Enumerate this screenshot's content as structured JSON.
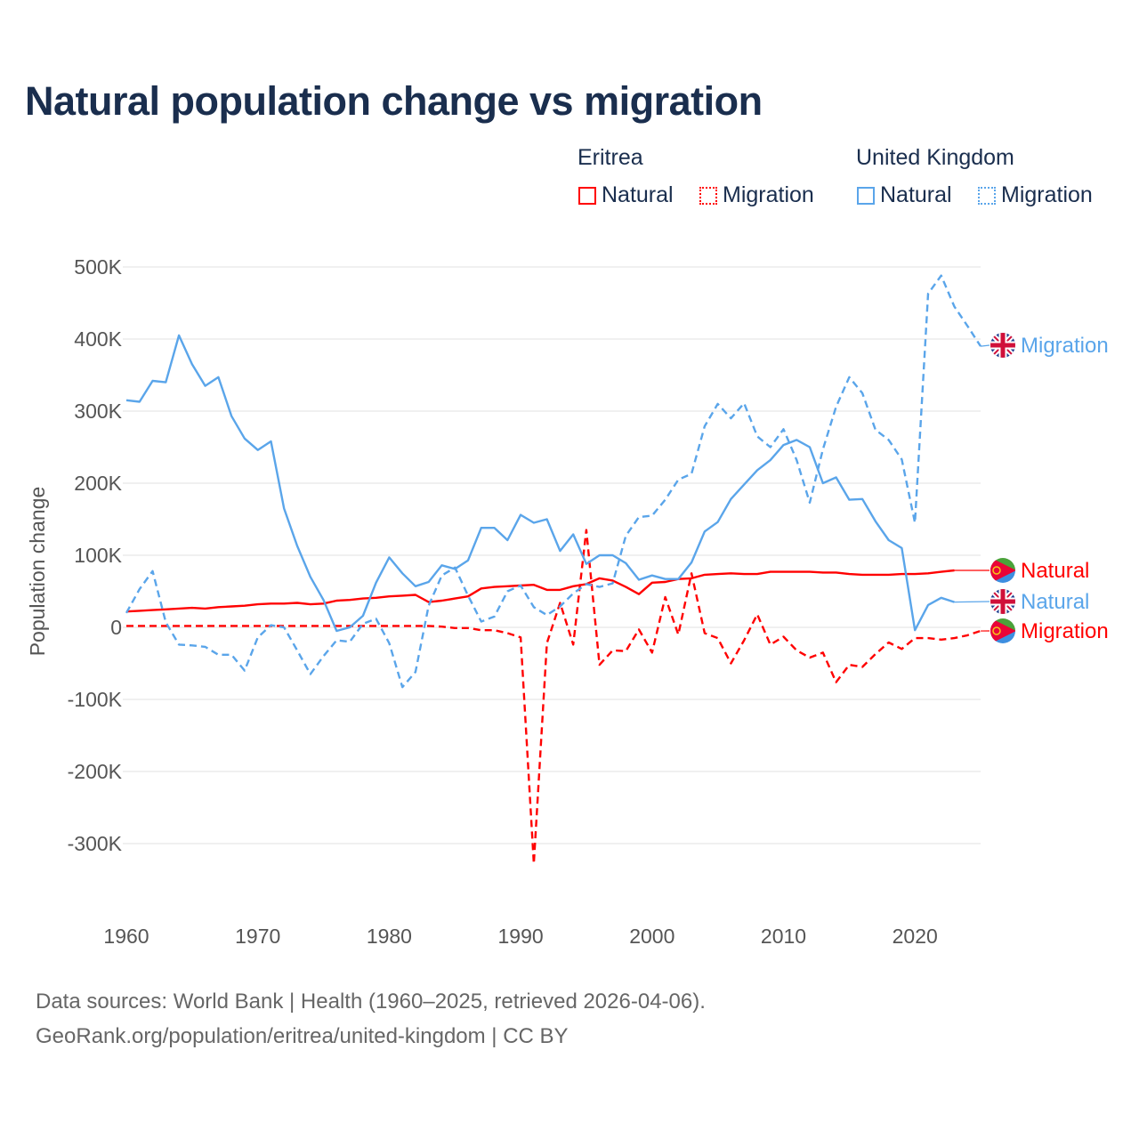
{
  "title": "Natural population change vs migration",
  "legend": {
    "groups": [
      {
        "name": "Eritrea",
        "items": [
          "Natural",
          "Migration"
        ]
      },
      {
        "name": "United Kingdom",
        "items": [
          "Natural",
          "Migration"
        ]
      }
    ]
  },
  "footer": {
    "line1": "Data sources: World Bank | Health (1960–2025, retrieved 2026-04-06).",
    "line2": "GeoRank.org/population/eritrea/united-kingdom | CC BY"
  },
  "colors": {
    "eritrea": "#ff0000",
    "uk": "#5aa5ea",
    "grid": "#ebebeb"
  },
  "chart_data": {
    "type": "line",
    "title": "Natural population change vs migration",
    "xlabel": "",
    "ylabel": "Population change",
    "xlim": [
      1960,
      2025
    ],
    "ylim": [
      -350000,
      500000
    ],
    "xticks": [
      1960,
      1970,
      1980,
      1990,
      2000,
      2010,
      2020
    ],
    "xtick_labels": [
      "1960",
      "1970",
      "1980",
      "1990",
      "2000",
      "2010",
      "2020"
    ],
    "yticks": [
      500000,
      400000,
      300000,
      200000,
      100000,
      0,
      -100000,
      -200000,
      -300000
    ],
    "ytick_labels": [
      "500K",
      "400K",
      "300K",
      "200K",
      "100K",
      "0",
      "-100K",
      "-200K",
      "-300K"
    ],
    "grid": true,
    "legend_position": "top-right",
    "series": [
      {
        "name": "Eritrea Natural",
        "country": "Eritrea",
        "kind": "Natural",
        "end_label": "Natural",
        "color": "#ff0000",
        "dash": "solid",
        "flag": "eritrea-flag",
        "start": 1960,
        "values": [
          22000,
          23000,
          24000,
          25000,
          26000,
          27000,
          26000,
          28000,
          29000,
          30000,
          32000,
          33000,
          33000,
          34000,
          32000,
          33000,
          37000,
          38000,
          40000,
          41000,
          43000,
          44000,
          45000,
          35000,
          37000,
          40000,
          43000,
          54000,
          56000,
          57000,
          58000,
          59000,
          52000,
          52000,
          57000,
          60000,
          68000,
          65000,
          56000,
          46000,
          62000,
          63000,
          67000,
          68000,
          73000,
          74000,
          75000,
          74000,
          74000,
          77000,
          77000,
          77000,
          77000,
          76000,
          76000,
          74000,
          73000,
          73000,
          73000,
          74000,
          74000,
          75000,
          77000,
          79000
        ]
      },
      {
        "name": "Eritrea Migration",
        "country": "Eritrea",
        "kind": "Migration",
        "end_label": "Migration",
        "color": "#ff0000",
        "dash": "dashed",
        "flag": "eritrea-flag",
        "start": 1960,
        "values": [
          2000,
          2000,
          2000,
          2000,
          2000,
          2000,
          2000,
          2000,
          2000,
          2000,
          2000,
          2000,
          2000,
          2000,
          2000,
          2000,
          2000,
          2000,
          2000,
          2000,
          2000,
          2000,
          2000,
          2000,
          1000,
          -1000,
          -1000,
          -4000,
          -4000,
          -8000,
          -14000,
          -328000,
          -22000,
          34000,
          -24000,
          135000,
          -52000,
          -32000,
          -33000,
          -3000,
          -35000,
          42000,
          -10000,
          75000,
          -8000,
          -15000,
          -50000,
          -18000,
          18000,
          -24000,
          -13000,
          -32000,
          -42000,
          -35000,
          -76000,
          -52000,
          -55000,
          -37000,
          -21000,
          -30000,
          -15000,
          -15000,
          -17000,
          -15000,
          -11000,
          -5000
        ]
      },
      {
        "name": "United Kingdom Natural",
        "country": "United Kingdom",
        "kind": "Natural",
        "end_label": "Natural",
        "color": "#5aa5ea",
        "dash": "solid",
        "flag": "uk-flag",
        "start": 1960,
        "values": [
          315000,
          313000,
          342000,
          340000,
          405000,
          365000,
          335000,
          347000,
          293000,
          262000,
          246000,
          258000,
          165000,
          113000,
          70000,
          38000,
          -5000,
          0,
          16000,
          62000,
          97000,
          75000,
          57000,
          63000,
          86000,
          81000,
          93000,
          138000,
          138000,
          121000,
          156000,
          145000,
          150000,
          106000,
          129000,
          88000,
          100000,
          100000,
          89000,
          66000,
          72000,
          67000,
          67000,
          90000,
          133000,
          146000,
          178000,
          198000,
          218000,
          232000,
          253000,
          260000,
          250000,
          200000,
          208000,
          177000,
          178000,
          147000,
          121000,
          110000,
          -4000,
          31000,
          41000,
          35000
        ]
      },
      {
        "name": "United Kingdom Migration",
        "country": "United Kingdom",
        "kind": "Migration",
        "end_label": "Migration",
        "color": "#5aa5ea",
        "dash": "dashed",
        "flag": "uk-flag",
        "start": 1960,
        "values": [
          20000,
          53000,
          78000,
          7000,
          -24000,
          -25000,
          -27000,
          -38000,
          -38000,
          -60000,
          -14000,
          3000,
          0,
          -32000,
          -65000,
          -40000,
          -18000,
          -20000,
          5000,
          12000,
          -22000,
          -83000,
          -62000,
          30000,
          72000,
          83000,
          44000,
          8000,
          15000,
          50000,
          58000,
          28000,
          17000,
          29000,
          47000,
          60000,
          56000,
          61000,
          127000,
          153000,
          155000,
          177000,
          205000,
          213000,
          279000,
          310000,
          290000,
          311000,
          265000,
          250000,
          275000,
          232000,
          173000,
          247000,
          306000,
          347000,
          325000,
          274000,
          260000,
          233000,
          145000,
          463000,
          488000,
          445000,
          418000,
          390000
        ]
      }
    ]
  }
}
